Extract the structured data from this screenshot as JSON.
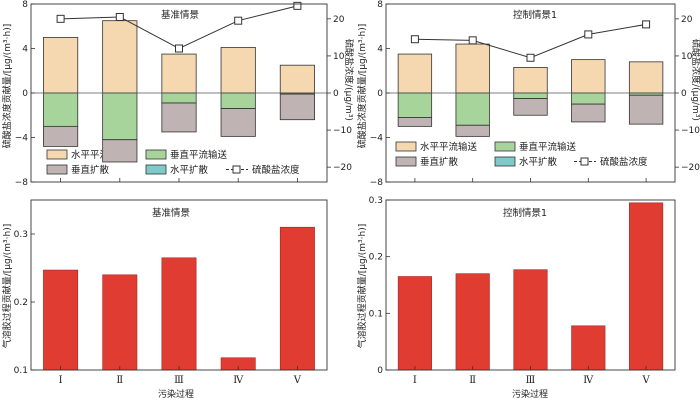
{
  "colors": {
    "horizontal_advection": "#f5d8b0",
    "vertical_advection": "#a6d49a",
    "vertical_diffusion": "#bfb3b3",
    "horizontal_diffusion": "#7ec9c9",
    "aerosol_bar": "#e03c31",
    "line": "#333333"
  },
  "legend": {
    "horizontal_advection": "水平平流输送",
    "vertical_advection": "垂直平流输送",
    "vertical_diffusion": "垂直扩散",
    "horizontal_diffusion": "水平扩散",
    "concentration": "硫酸盐浓度"
  },
  "chart_data": [
    {
      "id": "top-left",
      "type": "bar",
      "stacked": true,
      "title": "基准情景",
      "ylabel": "硫酸盐浓度贡献量/[μg/(m³·h)]",
      "y2label": "硫酸盐浓度/(μg/m³)",
      "ylim": [
        -8,
        8
      ],
      "yticks": [
        -8,
        -4,
        0,
        4,
        8
      ],
      "y2lim": [
        -24,
        24
      ],
      "y2ticks": [
        -20,
        -10,
        0,
        10,
        20
      ],
      "categories": [
        "I",
        "II",
        "III",
        "IV",
        "V"
      ],
      "series": [
        {
          "key": "horizontal_advection",
          "name": "水平平流输送",
          "values": [
            5.0,
            6.5,
            3.5,
            4.1,
            2.5
          ]
        },
        {
          "key": "vertical_advection",
          "name": "垂直平流输送",
          "values": [
            -3.0,
            -4.2,
            -0.9,
            -1.4,
            -0.1
          ]
        },
        {
          "key": "vertical_diffusion",
          "name": "垂直扩散",
          "values": [
            -1.8,
            -2.0,
            -2.6,
            -2.5,
            -2.3
          ]
        },
        {
          "key": "horizontal_diffusion",
          "name": "水平扩散",
          "values": [
            0,
            0,
            0,
            0,
            0
          ]
        }
      ],
      "line": {
        "key": "concentration",
        "name": "硫酸盐浓度",
        "values": [
          20.0,
          20.5,
          12.0,
          19.5,
          23.5
        ]
      }
    },
    {
      "id": "top-right",
      "type": "bar",
      "stacked": true,
      "title": "控制情景1",
      "ylabel": "硫酸盐浓度贡献量/[μg/(m³·h)]",
      "y2label": "硫酸盐浓度/(μg/m³)",
      "ylim": [
        -8,
        8
      ],
      "yticks": [
        -8,
        -4,
        0,
        4,
        8
      ],
      "y2lim": [
        -24,
        24
      ],
      "y2ticks": [
        -20,
        -10,
        0,
        10,
        20
      ],
      "categories": [
        "I",
        "II",
        "III",
        "IV",
        "V"
      ],
      "series": [
        {
          "key": "horizontal_advection",
          "name": "水平平流输送",
          "values": [
            3.5,
            4.4,
            2.3,
            3.0,
            2.8
          ]
        },
        {
          "key": "vertical_advection",
          "name": "垂直平流输送",
          "values": [
            -2.2,
            -2.9,
            -0.5,
            -1.0,
            -0.2
          ]
        },
        {
          "key": "vertical_diffusion",
          "name": "垂直扩散",
          "values": [
            -0.8,
            -1.0,
            -1.5,
            -1.6,
            -2.6
          ]
        },
        {
          "key": "horizontal_diffusion",
          "name": "水平扩散",
          "values": [
            0,
            0,
            0,
            0,
            0
          ]
        }
      ],
      "line": {
        "key": "concentration",
        "name": "硫酸盐浓度",
        "values": [
          14.5,
          14.2,
          9.5,
          15.8,
          18.5
        ]
      }
    },
    {
      "id": "bottom-left",
      "type": "bar",
      "title": "基准情景",
      "ylabel": "气溶胶过程贡献量/[μg/(m³·h)]",
      "xlabel": "污染过程",
      "ylim": [
        0.1,
        0.35
      ],
      "yticks": [
        0.1,
        0.2,
        0.3
      ],
      "categories": [
        "I",
        "II",
        "III",
        "IV",
        "V"
      ],
      "values": [
        0.247,
        0.24,
        0.265,
        0.118,
        0.31
      ]
    },
    {
      "id": "bottom-right",
      "type": "bar",
      "title": "控制情景1",
      "ylabel": "气溶胶过程贡献量/[μg/(m³·h)]",
      "xlabel": "污染过程",
      "ylim": [
        0,
        0.3
      ],
      "yticks": [
        0,
        0.1,
        0.2,
        0.3
      ],
      "categories": [
        "I",
        "II",
        "III",
        "IV",
        "V"
      ],
      "values": [
        0.165,
        0.17,
        0.177,
        0.078,
        0.295
      ]
    }
  ]
}
